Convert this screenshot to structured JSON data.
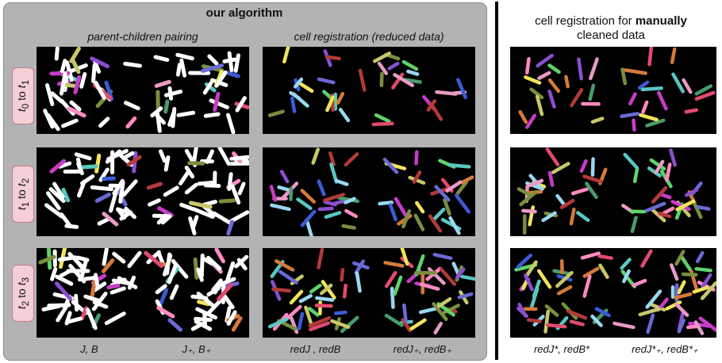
{
  "left": {
    "title": "our algorithm",
    "col1_title": "parent-children pairing",
    "col2_title": "cell registration (reduced data)"
  },
  "right": {
    "title_pre": "cell registration for ",
    "title_bold": "manually",
    "title_post": "cleaned data"
  },
  "rows": [
    "t0 to t1",
    "t1 to t2",
    "t2 to t3"
  ],
  "row_labels": [
    {
      "a": "t",
      "as": "0",
      "mid": " to ",
      "b": "t",
      "bs": "1"
    },
    {
      "a": "t",
      "as": "1",
      "mid": " to ",
      "b": "t",
      "bs": "2"
    },
    {
      "a": "t",
      "as": "2",
      "mid": " to ",
      "b": "t",
      "bs": "3"
    }
  ],
  "captions": {
    "c1a": "J, B",
    "c1b": "J₊, B₊",
    "c2a": "redJ , redB",
    "c2b": "redJ₊, redB₊",
    "c3a": "redJ*, redB*",
    "c3b": "redJ*₊, redB*₊"
  },
  "colors": {
    "panel_bg": "#b3b3b3",
    "row_label_bg": "#f4cfd6",
    "tile_bg": "#000000",
    "divider": "#000000"
  }
}
